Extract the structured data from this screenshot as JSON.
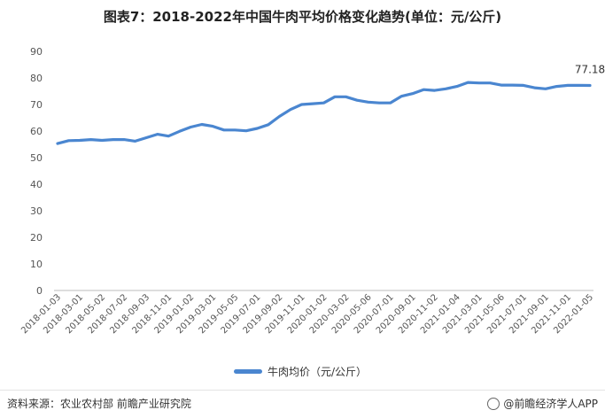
{
  "title": "图表7：2018-2022年中国牛肉平均价格变化趋势(单位：元/公斤)",
  "legend_label": "牛肉均价（元/公斤）",
  "footer": {
    "source": "资料来源：农业农村部 前瞻产业研究院",
    "brand": "@前瞻经济学人APP"
  },
  "colors": {
    "line": "#4a86d0",
    "axis": "#bbbbbb"
  },
  "chart_data": {
    "type": "line",
    "title": "图表7：2018-2022年中国牛肉平均价格变化趋势(单位：元/公斤)",
    "xlabel": "",
    "ylabel": "",
    "ylim": [
      0,
      90
    ],
    "yticks": [
      0,
      10,
      20,
      30,
      40,
      50,
      60,
      70,
      80,
      90
    ],
    "grid": false,
    "legend_position": "bottom",
    "x": [
      "2018-01-03",
      "2018-02-01",
      "2018-03-01",
      "2018-04-02",
      "2018-05-02",
      "2018-06-01",
      "2018-07-02",
      "2018-08-01",
      "2018-09-03",
      "2018-10-01",
      "2018-11-01",
      "2018-12-01",
      "2019-01-02",
      "2019-02-01",
      "2019-03-01",
      "2019-04-01",
      "2019-05-05",
      "2019-06-03",
      "2019-07-01",
      "2019-08-01",
      "2019-09-02",
      "2019-10-08",
      "2019-11-01",
      "2019-12-02",
      "2020-01-02",
      "2020-02-03",
      "2020-03-02",
      "2020-04-01",
      "2020-05-06",
      "2020-06-01",
      "2020-07-01",
      "2020-08-03",
      "2020-09-01",
      "2020-10-09",
      "2020-11-02",
      "2020-12-01",
      "2021-01-04",
      "2021-02-01",
      "2021-03-01",
      "2021-04-01",
      "2021-05-06",
      "2021-06-01",
      "2021-07-01",
      "2021-08-02",
      "2021-09-01",
      "2021-10-08",
      "2021-11-01",
      "2021-12-01",
      "2022-01-05"
    ],
    "xtick_labels": [
      "2018-01-03",
      "2018-03-01",
      "2018-05-02",
      "2018-07-02",
      "2018-09-03",
      "2018-11-01",
      "2019-01-02",
      "2019-03-01",
      "2019-05-05",
      "2019-07-01",
      "2019-09-02",
      "2019-11-01",
      "2020-01-02",
      "2020-03-02",
      "2020-05-06",
      "2020-07-01",
      "2020-09-01",
      "2020-11-02",
      "2021-01-04",
      "2021-03-01",
      "2021-05-06",
      "2021-07-01",
      "2021-09-01",
      "2021-11-01",
      "2022-01-05"
    ],
    "series": [
      {
        "name": "牛肉均价（元/公斤）",
        "values": [
          55.3,
          56.4,
          56.5,
          56.8,
          56.5,
          56.8,
          56.8,
          56.2,
          57.5,
          58.8,
          58.1,
          59.9,
          61.5,
          62.5,
          61.8,
          60.4,
          60.4,
          60.1,
          61.0,
          62.4,
          65.5,
          68.1,
          70.0,
          70.3,
          70.6,
          72.9,
          72.9,
          71.6,
          70.9,
          70.6,
          70.6,
          73.1,
          74.1,
          75.6,
          75.3,
          75.9,
          76.8,
          78.3,
          78.1,
          78.1,
          77.3,
          77.3,
          77.2,
          76.3,
          75.9,
          76.8,
          77.2,
          77.2,
          77.18
        ]
      }
    ],
    "annotations": [
      {
        "index": 48,
        "text": "77.18"
      }
    ]
  }
}
